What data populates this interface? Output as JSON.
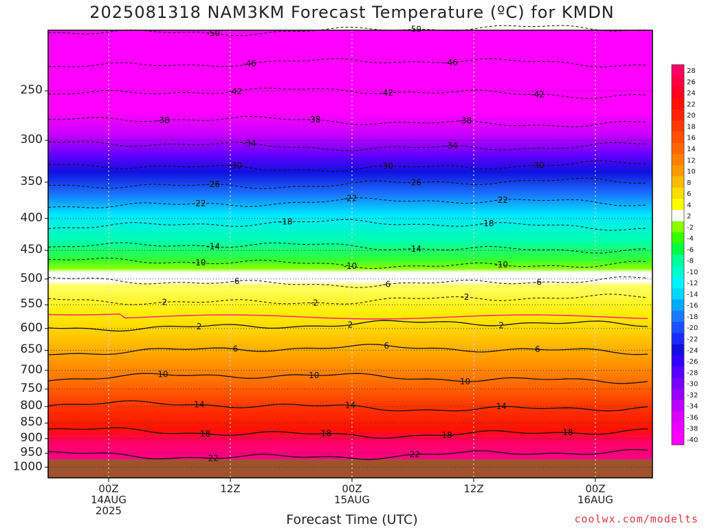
{
  "title": "2025081318 NAM3KM Forecast Temperature (ºC) for KMDN",
  "credit": "coolwx.com/modelts",
  "chart_data": {
    "type": "heatmap",
    "title": "2025081318 NAM3KM Forecast Temperature (ºC) for KMDN",
    "xlabel": "Forecast Time (UTC)",
    "ylabel": "",
    "x_ticks": [
      {
        "lines": [
          "00Z",
          "14AUG",
          "2025"
        ]
      },
      {
        "lines": [
          "12Z"
        ]
      },
      {
        "lines": [
          "00Z",
          "15AUG"
        ]
      },
      {
        "lines": [
          "12Z"
        ]
      },
      {
        "lines": [
          "00Z",
          "16AUG"
        ]
      }
    ],
    "y_ticks": [
      "250",
      "300",
      "350",
      "400",
      "450",
      "500",
      "550",
      "600",
      "650",
      "700",
      "750",
      "800",
      "850",
      "900",
      "950",
      "1000"
    ],
    "y_tick_values": [
      250,
      300,
      350,
      400,
      450,
      500,
      550,
      600,
      650,
      700,
      750,
      800,
      850,
      900,
      950,
      1000
    ],
    "y_axis": "pressure (log scale, inverted)",
    "grid": true,
    "colorbar_labels": [
      "28",
      "26",
      "24",
      "22",
      "20",
      "18",
      "16",
      "14",
      "12",
      "10",
      "8",
      "6",
      "4",
      "2",
      "-2",
      "-4",
      "-6",
      "-8",
      "-10",
      "-12",
      "-14",
      "-16",
      "-18",
      "-20",
      "-22",
      "-24",
      "-26",
      "-28",
      "-30",
      "-32",
      "-34",
      "-36",
      "-38",
      "-40"
    ],
    "palette": {
      "magenta": "#ff00ff",
      "violet": "#b000ff",
      "blue": "#1c1cf0",
      "lightblue": "#1a96ff",
      "cyan": "#00f0ff",
      "green": "#00ff66",
      "lime": "#66ff00",
      "white": "#ffffff",
      "yellow": "#ffff00",
      "orange": "#ff9900",
      "red": "#ff2200",
      "pink": "#ff0088",
      "ground": "#a0522d"
    },
    "contours": [
      {
        "temperature": -50,
        "pressure": 200,
        "labels": [
          {
            "text": "-50"
          },
          {
            "text": "-50"
          }
        ]
      },
      {
        "temperature": -46,
        "pressure": 226,
        "labels": [
          {
            "text": "-46"
          },
          {
            "text": "-46"
          }
        ]
      },
      {
        "temperature": -42,
        "pressure": 252,
        "labels": [
          {
            "text": "-42"
          },
          {
            "text": "-42"
          },
          {
            "text": "-42"
          }
        ]
      },
      {
        "temperature": -38,
        "pressure": 280,
        "labels": [
          {
            "text": "-38"
          },
          {
            "text": "-38"
          },
          {
            "text": "-38"
          }
        ]
      },
      {
        "temperature": -34,
        "pressure": 306,
        "labels": [
          {
            "text": "-34"
          },
          {
            "text": "-34"
          }
        ]
      },
      {
        "temperature": -30,
        "pressure": 330,
        "labels": [
          {
            "text": "-30"
          },
          {
            "text": "-30"
          },
          {
            "text": "-30"
          }
        ]
      },
      {
        "temperature": -26,
        "pressure": 352,
        "labels": [
          {
            "text": "-26"
          },
          {
            "text": "-26"
          }
        ]
      },
      {
        "temperature": -22,
        "pressure": 378,
        "labels": [
          {
            "text": "-22"
          },
          {
            "text": "-22"
          },
          {
            "text": "-22"
          }
        ]
      },
      {
        "temperature": -18,
        "pressure": 410,
        "labels": [
          {
            "text": "-18"
          },
          {
            "text": "-18"
          }
        ]
      },
      {
        "temperature": -14,
        "pressure": 445,
        "labels": [
          {
            "text": "-14"
          },
          {
            "text": "-14"
          }
        ]
      },
      {
        "temperature": -10,
        "pressure": 472,
        "labels": [
          {
            "text": "-10"
          },
          {
            "text": "-10"
          },
          {
            "text": "-10"
          }
        ]
      },
      {
        "temperature": -6,
        "pressure": 505,
        "labels": [
          {
            "text": "-6"
          },
          {
            "text": "-6"
          },
          {
            "text": "-6"
          }
        ]
      },
      {
        "temperature": -2,
        "pressure": 540,
        "labels": [
          {
            "text": "-2"
          },
          {
            "text": "-2"
          },
          {
            "text": "-2"
          }
        ]
      },
      {
        "temperature": 2,
        "pressure": 593,
        "labels": [
          {
            "text": "2"
          },
          {
            "text": "2"
          },
          {
            "text": "2"
          }
        ]
      },
      {
        "temperature": 6,
        "pressure": 650,
        "labels": [
          {
            "text": "6"
          },
          {
            "text": "6"
          },
          {
            "text": "6"
          }
        ]
      },
      {
        "temperature": 10,
        "pressure": 720,
        "labels": [
          {
            "text": "10"
          },
          {
            "text": "10"
          },
          {
            "text": "10"
          }
        ]
      },
      {
        "temperature": 14,
        "pressure": 800,
        "labels": [
          {
            "text": "14"
          },
          {
            "text": "14"
          },
          {
            "text": "14"
          }
        ]
      },
      {
        "temperature": 18,
        "pressure": 880,
        "labels": [
          {
            "text": "18"
          },
          {
            "text": "18"
          },
          {
            "text": "18"
          },
          {
            "text": "18"
          }
        ]
      },
      {
        "temperature": 22,
        "pressure": 955,
        "labels": [
          {
            "text": "22"
          },
          {
            "text": "22"
          }
        ]
      }
    ]
  }
}
